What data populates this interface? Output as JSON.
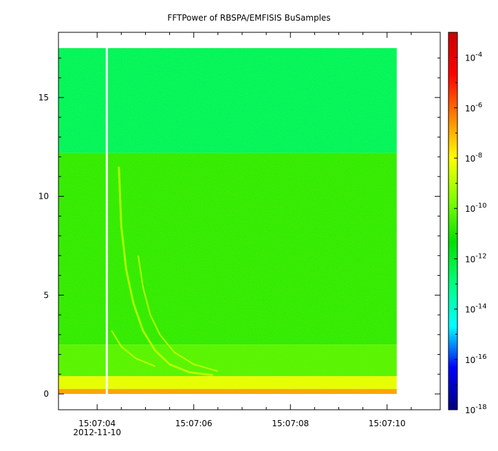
{
  "chart_data": {
    "type": "heatmap",
    "title": "FFTPower of RBSPA/EMFISIS  BuSamples",
    "xlabel": "",
    "ylabel": "",
    "x_ticks": [
      {
        "label": "15:07:04",
        "sublabel": "2012-11-10",
        "t": 4
      },
      {
        "label": "15:07:06",
        "sublabel": "",
        "t": 6
      },
      {
        "label": "15:07:08",
        "sublabel": "",
        "t": 8
      },
      {
        "label": "15:07:10",
        "sublabel": "",
        "t": 10
      }
    ],
    "x_minor_ticks": [
      4.5,
      5,
      5.5,
      6.5,
      7,
      7.5,
      8.5,
      9,
      9.5,
      10.5
    ],
    "xlim_seconds_after_15_07_00": [
      3.2,
      11.1
    ],
    "data_time_range_seconds_after_15_07_00": [
      3.2,
      10.2
    ],
    "gap_time_seconds_after_15_07_00": 4.2,
    "y_ticks": [
      0,
      5,
      10,
      15
    ],
    "ylim": [
      -0.8,
      18.3
    ],
    "data_frequency_max": 17.5,
    "colorbar": {
      "scale": "log",
      "range": [
        1e-18,
        0.001
      ],
      "tick_labels": [
        {
          "base": "10",
          "exp": "-4",
          "value": 0.0001
        },
        {
          "base": "10",
          "exp": "-6",
          "value": 1e-06
        },
        {
          "base": "10",
          "exp": "-8",
          "value": 1e-08
        },
        {
          "base": "10",
          "exp": "-10",
          "value": 1e-10
        },
        {
          "base": "10",
          "exp": "-12",
          "value": 1e-12
        },
        {
          "base": "10",
          "exp": "-14",
          "value": 1e-14
        },
        {
          "base": "10",
          "exp": "-16",
          "value": 1e-16
        },
        {
          "base": "10",
          "exp": "-18",
          "value": 1e-18
        }
      ],
      "colors": [
        "#00007f",
        "#0000ff",
        "#00ffff",
        "#00ff80",
        "#00e000",
        "#80ff00",
        "#ffff00",
        "#ff8000",
        "#ff0000",
        "#c80000"
      ]
    },
    "power_bands": [
      {
        "freq_range": [
          12.2,
          17.5
        ],
        "log_power": -12.5
      },
      {
        "freq_range": [
          2.5,
          12.2
        ],
        "log_power": -10.7
      },
      {
        "freq_range": [
          0.9,
          2.5
        ],
        "log_power": -10.2
      },
      {
        "freq_range": [
          0.25,
          0.9
        ],
        "log_power": -8.3
      },
      {
        "freq_range": [
          0.0,
          0.25
        ],
        "log_power": -6.8
      }
    ],
    "features": [
      {
        "name": "dispersed-whistler",
        "log_power": -8.6
      }
    ]
  }
}
